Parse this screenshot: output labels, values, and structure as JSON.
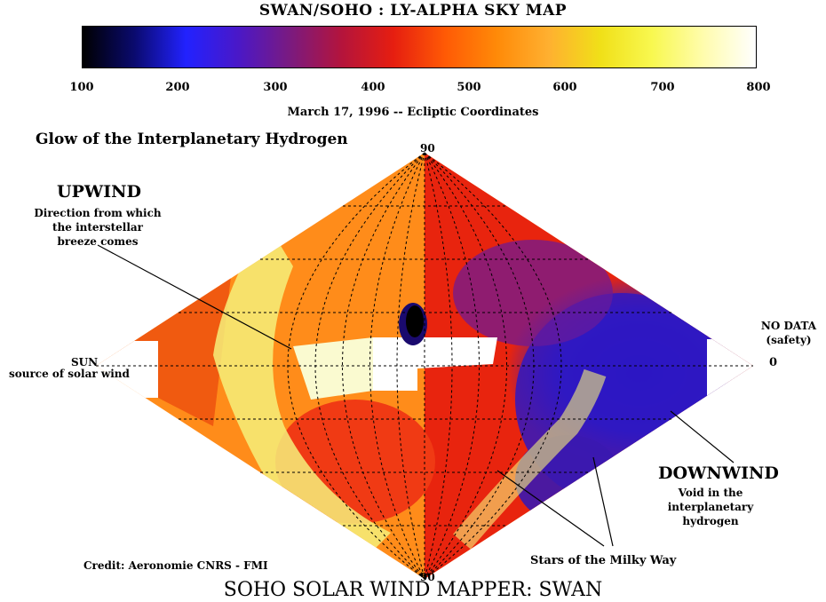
{
  "title": "SWAN/SOHO : LY-ALPHA SKY MAP",
  "colorbar": {
    "ticks": [
      "100",
      "200",
      "300",
      "400",
      "500",
      "600",
      "700",
      "800"
    ],
    "colors": [
      "#000000",
      "#0a0a6e",
      "#2222ff",
      "#4a18c8",
      "#7a1a80",
      "#b4143c",
      "#e61e10",
      "#ff5a05",
      "#ff8a08",
      "#ffb030",
      "#f0e018",
      "#f8f850",
      "#fffcae",
      "#ffffff"
    ]
  },
  "date_line": "March 17, 1996 -- Ecliptic Coordinates",
  "map_title": "Glow of the Interplanetary Hydrogen",
  "labels": {
    "lat_top": "90",
    "lat_bottom": "90",
    "lon_zero": "0",
    "upwind": "UPWIND",
    "upwind_desc": [
      "Direction from which",
      "the interstellar",
      "breeze comes"
    ],
    "sun": "SUN",
    "sun_desc": "source of solar wind",
    "no_data": [
      "NO DATA",
      "(safety)"
    ],
    "downwind": "DOWNWIND",
    "downwind_desc": [
      "Void in the",
      "interplanetary",
      "hydrogen"
    ],
    "stars": "Stars of the Milky Way",
    "credit": "Credit: Aeronomie CNRS - FMI"
  },
  "footer": "SOHO SOLAR WIND MAPPER: SWAN",
  "colors": {
    "upwind_orange": "#ff8c1a",
    "mid_red": "#e8240e",
    "downwind_blue": "#2a1ccf",
    "star_yellow": "#f6f07a",
    "no_data_white": "#ffffff"
  }
}
